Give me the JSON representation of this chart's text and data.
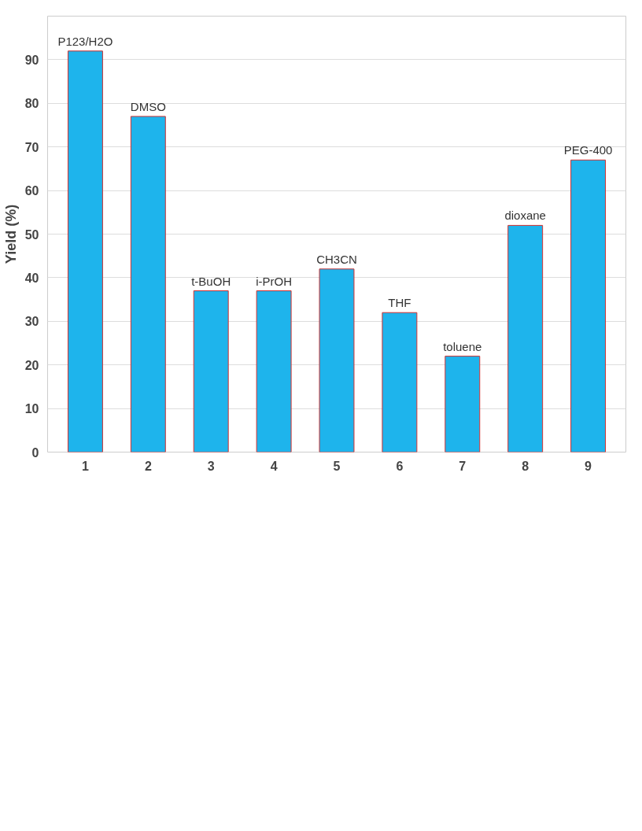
{
  "chart_data": {
    "type": "bar",
    "ylabel": "Yield (%)",
    "categories": [
      "1",
      "2",
      "3",
      "4",
      "5",
      "6",
      "7",
      "8",
      "9"
    ],
    "values": [
      92,
      77,
      37,
      37,
      42,
      32,
      22,
      52,
      67
    ],
    "color": "#1eb4ec",
    "ylim": [
      0,
      100
    ],
    "yticks": [
      0,
      10,
      20,
      30,
      40,
      50,
      60,
      70,
      80,
      90
    ],
    "grid": "y",
    "annotations": [
      {
        "text": "P123/H2O",
        "x": "1",
        "y": 92
      },
      {
        "text": "DMSO",
        "x": "2",
        "y": 77
      },
      {
        "text": "t-BuOH",
        "x": "3",
        "y": 37
      },
      {
        "text": "i-PrOH",
        "x": "4",
        "y": 37
      },
      {
        "text": "CH3CN",
        "x": "5",
        "y": 42
      },
      {
        "text": "THF",
        "x": "6",
        "y": 32
      },
      {
        "text": "toluene",
        "x": "7",
        "y": 22
      },
      {
        "text": "dioxane",
        "x": "8",
        "y": 52
      },
      {
        "text": "PEG-400",
        "x": "9",
        "y": 67
      }
    ]
  }
}
